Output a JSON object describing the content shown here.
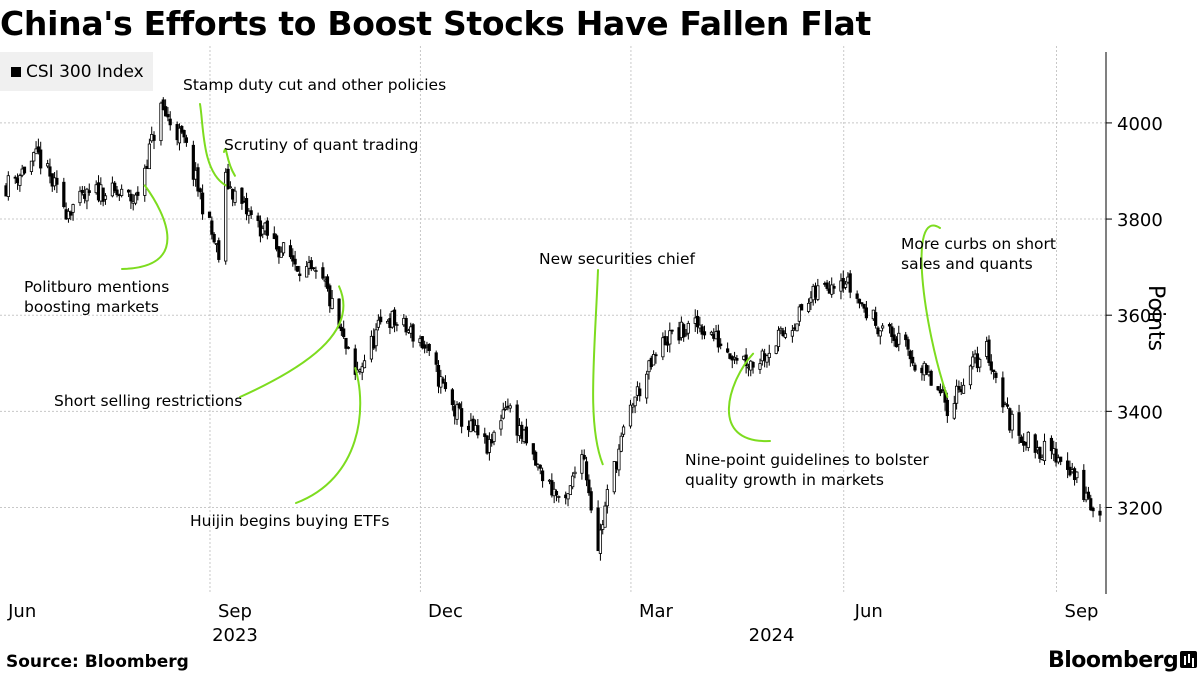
{
  "chart_data": {
    "type": "candlestick",
    "title": "China's Efforts to Boost Stocks Have Fallen Flat",
    "legend": [
      {
        "label": "CSI 300 Index",
        "color": "#000000"
      }
    ],
    "ylabel": "Points",
    "ylim": [
      3020,
      4160
    ],
    "yticks": [
      3200,
      3400,
      3600,
      3800,
      4000
    ],
    "ytick_labels": [
      "3200",
      "3400",
      "3600",
      "3800",
      "4000"
    ],
    "xlim": [
      "2023-05-25",
      "2024-09-09"
    ],
    "xticks": [
      {
        "date": "2023-06-01",
        "label": "Jun"
      },
      {
        "date": "2023-09-01",
        "label": "Sep"
      },
      {
        "date": "2023-12-01",
        "label": "Dec"
      },
      {
        "date": "2024-03-01",
        "label": "Mar"
      },
      {
        "date": "2024-06-01",
        "label": "Jun"
      },
      {
        "date": "2024-09-01",
        "label": "Sep"
      }
    ],
    "year_labels": [
      {
        "date": "2023-09-01",
        "label": "2023"
      },
      {
        "date": "2024-04-20",
        "label": "2024"
      }
    ],
    "anchors": [
      {
        "date": "2023-05-25",
        "value": 3870
      },
      {
        "date": "2023-06-08",
        "value": 3930
      },
      {
        "date": "2023-06-20",
        "value": 3820
      },
      {
        "date": "2023-07-05",
        "value": 3860
      },
      {
        "date": "2023-07-20",
        "value": 3840
      },
      {
        "date": "2023-07-31",
        "value": 4030
      },
      {
        "date": "2023-08-10",
        "value": 3960
      },
      {
        "date": "2023-08-25",
        "value": 3720
      },
      {
        "date": "2023-08-28",
        "value": 3880
      },
      {
        "date": "2023-09-05",
        "value": 3820
      },
      {
        "date": "2023-09-20",
        "value": 3740
      },
      {
        "date": "2023-10-10",
        "value": 3660
      },
      {
        "date": "2023-10-23",
        "value": 3470
      },
      {
        "date": "2023-11-05",
        "value": 3600
      },
      {
        "date": "2023-11-20",
        "value": 3550
      },
      {
        "date": "2023-12-05",
        "value": 3400
      },
      {
        "date": "2023-12-20",
        "value": 3320
      },
      {
        "date": "2023-12-27",
        "value": 3420
      },
      {
        "date": "2024-01-10",
        "value": 3280
      },
      {
        "date": "2024-01-22",
        "value": 3200
      },
      {
        "date": "2024-01-29",
        "value": 3330
      },
      {
        "date": "2024-02-05",
        "value": 3120
      },
      {
        "date": "2024-02-10",
        "value": 3250
      },
      {
        "date": "2024-02-20",
        "value": 3420
      },
      {
        "date": "2024-03-05",
        "value": 3550
      },
      {
        "date": "2024-03-20",
        "value": 3580
      },
      {
        "date": "2024-04-01",
        "value": 3530
      },
      {
        "date": "2024-04-12",
        "value": 3500
      },
      {
        "date": "2024-04-25",
        "value": 3560
      },
      {
        "date": "2024-05-10",
        "value": 3650
      },
      {
        "date": "2024-05-20",
        "value": 3685
      },
      {
        "date": "2024-06-01",
        "value": 3600
      },
      {
        "date": "2024-06-15",
        "value": 3540
      },
      {
        "date": "2024-06-28",
        "value": 3460
      },
      {
        "date": "2024-07-05",
        "value": 3410
      },
      {
        "date": "2024-07-15",
        "value": 3490
      },
      {
        "date": "2024-07-22",
        "value": 3530
      },
      {
        "date": "2024-08-01",
        "value": 3380
      },
      {
        "date": "2024-08-10",
        "value": 3330
      },
      {
        "date": "2024-08-25",
        "value": 3300
      },
      {
        "date": "2024-09-09",
        "value": 3170
      }
    ],
    "annotations": [
      {
        "id": "politburo",
        "lines": [
          "Politburo mentions",
          "boosting markets"
        ],
        "date": "2023-07-24",
        "value": 3870
      },
      {
        "id": "stamp-duty",
        "lines": [
          "Stamp duty cut and other policies"
        ],
        "date": "2023-08-28",
        "value": 3870
      },
      {
        "id": "quant",
        "lines": [
          "Scrutiny of quant trading"
        ],
        "date": "2023-09-01",
        "value": 3890
      },
      {
        "id": "short-selling",
        "lines": [
          "Short selling restrictions"
        ],
        "date": "2023-10-16",
        "value": 3660
      },
      {
        "id": "huijin",
        "lines": [
          "Huijin begins buying ETFs"
        ],
        "date": "2023-10-23",
        "value": 3490
      },
      {
        "id": "securities-chief",
        "lines": [
          "New securities chief"
        ],
        "date": "2024-02-07",
        "value": 3290
      },
      {
        "id": "nine-point",
        "lines": [
          "Nine-point guidelines to bolster",
          "quality growth in markets"
        ],
        "date": "2024-04-12",
        "value": 3520
      },
      {
        "id": "short-sales-quants",
        "lines": [
          "More curbs on short",
          "sales and quants"
        ],
        "date": "2024-07-05",
        "value": 3430
      }
    ]
  },
  "footer": {
    "source": "Source: Bloomberg",
    "brand": "Bloomberg"
  },
  "colors": {
    "annotation": "#7ddc1f",
    "candle": "#000000",
    "grid": "#c8c8c8"
  }
}
